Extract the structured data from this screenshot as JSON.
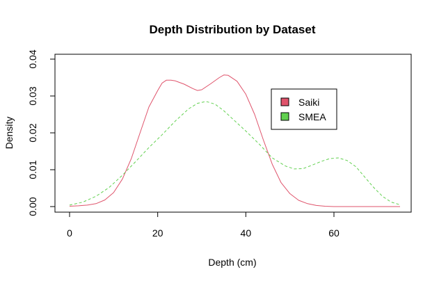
{
  "chart_data": {
    "type": "line",
    "title": "Depth Distribution by Dataset",
    "xlabel": "Depth (cm)",
    "ylabel": "Density",
    "xlim": [
      0,
      75
    ],
    "ylim": [
      0,
      0.04
    ],
    "x_ticks": [
      0,
      20,
      40,
      60
    ],
    "x_tick_labels": [
      "0",
      "20",
      "40",
      "60"
    ],
    "y_ticks": [
      0,
      0.01,
      0.02,
      0.03,
      0.04
    ],
    "y_tick_labels": [
      "0.00",
      "0.01",
      "0.02",
      "0.03",
      "0.04"
    ],
    "grid": false,
    "legend_position": "top-right",
    "series": [
      {
        "name": "Saiki",
        "color": "#DF536B",
        "line_style": "solid",
        "legend_fill": "#DF536B",
        "x": [
          0,
          2,
          4,
          6,
          8,
          10,
          12,
          14,
          16,
          18,
          20,
          21,
          22,
          23,
          24,
          26,
          28,
          29,
          30,
          32,
          34,
          35,
          36,
          38,
          40,
          42,
          44,
          46,
          48,
          50,
          52,
          54,
          56,
          58,
          60,
          65,
          70,
          75
        ],
        "y": [
          0.0001,
          0.0002,
          0.0004,
          0.0008,
          0.0018,
          0.0038,
          0.0075,
          0.013,
          0.02,
          0.027,
          0.0315,
          0.0335,
          0.0343,
          0.0343,
          0.0341,
          0.0332,
          0.032,
          0.0315,
          0.0317,
          0.0333,
          0.035,
          0.0357,
          0.0356,
          0.034,
          0.0305,
          0.025,
          0.018,
          0.0115,
          0.0065,
          0.0035,
          0.0017,
          0.0008,
          0.0003,
          0.0001,
          0.0,
          0.0,
          0.0,
          0.0
        ]
      },
      {
        "name": "SMEA",
        "color": "#61D04F",
        "line_style": "dashed",
        "legend_fill": "#61D04F",
        "x": [
          0,
          3,
          6,
          9,
          12,
          15,
          18,
          21,
          24,
          27,
          29,
          31,
          33,
          35,
          37,
          40,
          43,
          46,
          49,
          51,
          53,
          55,
          57,
          59,
          61,
          63,
          65,
          67,
          69,
          71,
          73,
          75
        ],
        "y": [
          0.0004,
          0.0012,
          0.0028,
          0.0052,
          0.0085,
          0.0122,
          0.016,
          0.0195,
          0.0232,
          0.0265,
          0.028,
          0.0285,
          0.0278,
          0.026,
          0.0238,
          0.0205,
          0.017,
          0.0132,
          0.011,
          0.0102,
          0.0103,
          0.0112,
          0.0122,
          0.013,
          0.0132,
          0.0125,
          0.0108,
          0.008,
          0.0052,
          0.0028,
          0.0012,
          0.0005
        ]
      }
    ]
  }
}
